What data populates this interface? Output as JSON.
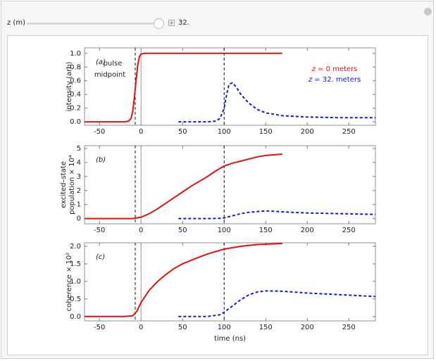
{
  "controls": {
    "slider_label": "z (m)",
    "slider_value": "32."
  },
  "chart_data": [
    {
      "type": "line",
      "panel_label": "(a)",
      "ylabel": [
        "intensity (arb)"
      ],
      "annotation": [
        "pulse",
        "midpoint"
      ],
      "xlim": [
        -68,
        282
      ],
      "ylim": [
        -0.05,
        1.08
      ],
      "xticks": [
        -50,
        0,
        50,
        100,
        150,
        200,
        250
      ],
      "yticks": [
        {
          "value": 0,
          "label": "0.0"
        },
        {
          "value": 0.2,
          "label": "0.2"
        },
        {
          "value": 0.4,
          "label": "0.4"
        },
        {
          "value": 0.6,
          "label": "0.6"
        },
        {
          "value": 0.8,
          "label": "0.8"
        },
        {
          "value": 1,
          "label": "1.0"
        }
      ],
      "vlines_dashed": [
        -7,
        100
      ],
      "vline_solid": 0,
      "series": [
        {
          "name": "z = 0 meters",
          "color": "#e41010",
          "line_style": "solid",
          "x": [
            -68,
            -40,
            -20,
            -15,
            -12,
            -10,
            -8,
            -6,
            -4,
            -2,
            0,
            5,
            20,
            50,
            100,
            150,
            170
          ],
          "values": [
            0,
            0,
            0,
            0.01,
            0.05,
            0.15,
            0.35,
            0.6,
            0.82,
            0.95,
            0.99,
            1,
            1,
            1,
            1,
            1,
            1
          ]
        },
        {
          "name": "z = 32. meters",
          "color": "#1515e0",
          "line_style": "dashed",
          "x": [
            45,
            60,
            80,
            90,
            95,
            100,
            103,
            106,
            110,
            115,
            120,
            130,
            140,
            150,
            170,
            200,
            240,
            282
          ],
          "values": [
            0,
            0,
            0,
            0.01,
            0.05,
            0.2,
            0.4,
            0.55,
            0.57,
            0.5,
            0.4,
            0.27,
            0.18,
            0.13,
            0.09,
            0.07,
            0.06,
            0.06
          ]
        }
      ]
    },
    {
      "type": "line",
      "panel_label": "(b)",
      "ylabel": [
        "excited–state",
        "population × 10⁴"
      ],
      "xlim": [
        -68,
        282
      ],
      "ylim": [
        -0.37,
        5.2
      ],
      "xticks": [
        -50,
        0,
        50,
        100,
        150,
        200,
        250
      ],
      "yticks": [
        0,
        1,
        2,
        3,
        4,
        5
      ],
      "vlines_dashed": [
        -7,
        100
      ],
      "vline_solid": 0,
      "series": [
        {
          "color": "#e41010",
          "line_style": "solid",
          "x": [
            -68,
            -20,
            -10,
            0,
            10,
            20,
            30,
            40,
            50,
            60,
            70,
            80,
            90,
            100,
            110,
            120,
            130,
            140,
            150,
            160,
            170
          ],
          "values": [
            0,
            0,
            0,
            0.1,
            0.35,
            0.7,
            1.1,
            1.5,
            1.9,
            2.3,
            2.65,
            3.0,
            3.4,
            3.75,
            3.95,
            4.1,
            4.25,
            4.4,
            4.5,
            4.55,
            4.6
          ]
        },
        {
          "color": "#1515e0",
          "line_style": "dashed",
          "x": [
            45,
            80,
            95,
            100,
            110,
            120,
            130,
            140,
            150,
            160,
            180,
            200,
            240,
            282
          ],
          "values": [
            0,
            0,
            0.02,
            0.05,
            0.2,
            0.35,
            0.45,
            0.5,
            0.55,
            0.52,
            0.45,
            0.4,
            0.35,
            0.3
          ]
        }
      ]
    },
    {
      "type": "line",
      "panel_label": "(c)",
      "ylabel": [
        "coherence × 10²"
      ],
      "xlabel": "time (ns)",
      "xlim": [
        -68,
        282
      ],
      "ylim": [
        -0.125,
        2.1
      ],
      "xticks": [
        -50,
        0,
        50,
        100,
        150,
        200,
        250
      ],
      "yticks": [
        {
          "value": 0,
          "label": "0.0"
        },
        {
          "value": 0.5,
          "label": "0.5"
        },
        {
          "value": 1,
          "label": "1.0"
        },
        {
          "value": 1.5,
          "label": "1.5"
        },
        {
          "value": 2,
          "label": "2.0"
        }
      ],
      "vlines_dashed": [
        -7,
        100
      ],
      "vline_solid": 0,
      "series": [
        {
          "color": "#e41010",
          "line_style": "solid",
          "x": [
            -68,
            -20,
            -10,
            -5,
            0,
            10,
            20,
            30,
            40,
            50,
            60,
            80,
            100,
            120,
            140,
            170
          ],
          "values": [
            0,
            0,
            0.02,
            0.15,
            0.4,
            0.75,
            1.0,
            1.2,
            1.37,
            1.5,
            1.6,
            1.78,
            1.92,
            2.0,
            2.05,
            2.08
          ]
        },
        {
          "color": "#1515e0",
          "line_style": "dashed",
          "x": [
            45,
            80,
            95,
            100,
            110,
            120,
            130,
            140,
            150,
            170,
            200,
            240,
            282
          ],
          "values": [
            0,
            0,
            0.05,
            0.12,
            0.3,
            0.48,
            0.62,
            0.7,
            0.73,
            0.72,
            0.67,
            0.62,
            0.57
          ]
        }
      ]
    }
  ]
}
